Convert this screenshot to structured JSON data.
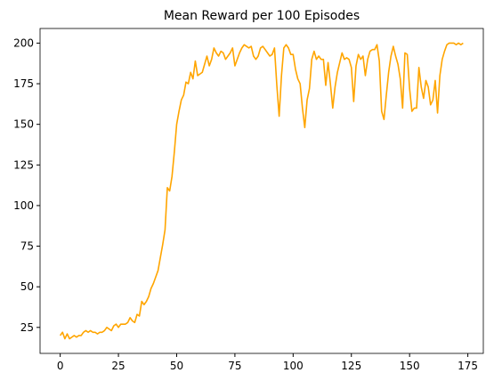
{
  "chart_data": {
    "type": "line",
    "title": "Mean Reward per 100 Episodes",
    "color": "#ffa500",
    "x": [
      0,
      1,
      2,
      3,
      4,
      5,
      6,
      7,
      8,
      9,
      10,
      11,
      12,
      13,
      14,
      15,
      16,
      17,
      18,
      19,
      20,
      21,
      22,
      23,
      24,
      25,
      26,
      27,
      28,
      29,
      30,
      31,
      32,
      33,
      34,
      35,
      36,
      37,
      38,
      39,
      40,
      41,
      42,
      43,
      44,
      45,
      46,
      47,
      48,
      49,
      50,
      51,
      52,
      53,
      54,
      55,
      56,
      57,
      58,
      59,
      60,
      61,
      62,
      63,
      64,
      65,
      66,
      67,
      68,
      69,
      70,
      71,
      72,
      73,
      74,
      75,
      76,
      77,
      78,
      79,
      80,
      81,
      82,
      83,
      84,
      85,
      86,
      87,
      88,
      89,
      90,
      91,
      92,
      93,
      94,
      95,
      96,
      97,
      98,
      99,
      100,
      101,
      102,
      103,
      104,
      105,
      106,
      107,
      108,
      109,
      110,
      111,
      112,
      113,
      114,
      115,
      116,
      117,
      118,
      119,
      120,
      121,
      122,
      123,
      124,
      125,
      126,
      127,
      128,
      129,
      130,
      131,
      132,
      133,
      134,
      135,
      136,
      137,
      138,
      139,
      140,
      141,
      142,
      143,
      144,
      145,
      146,
      147,
      148,
      149,
      150,
      151,
      152,
      153,
      154,
      155,
      156,
      157,
      158,
      159,
      160,
      161,
      162,
      163,
      164,
      165,
      166,
      167,
      168,
      169,
      170,
      171,
      172,
      173
    ],
    "values": [
      20,
      22,
      18,
      21,
      18,
      19,
      20,
      19,
      20,
      20,
      22,
      23,
      22,
      23,
      22,
      22,
      21,
      22,
      22,
      23,
      25,
      24,
      23,
      26,
      27,
      25,
      27,
      27,
      27,
      28,
      31,
      29,
      28,
      33,
      32,
      41,
      39,
      41,
      44,
      49,
      52,
      56,
      60,
      68,
      76,
      85,
      111,
      109,
      118,
      133,
      150,
      158,
      165,
      168,
      176,
      175,
      182,
      178,
      189,
      180,
      181,
      182,
      187,
      192,
      186,
      190,
      197,
      194,
      192,
      195,
      194,
      190,
      192,
      194,
      197,
      186,
      190,
      194,
      197,
      199,
      198,
      197,
      198,
      192,
      190,
      192,
      197,
      198,
      196,
      194,
      192,
      193,
      197,
      174,
      155,
      180,
      197,
      199,
      197,
      193,
      193,
      184,
      178,
      175,
      160,
      148,
      165,
      172,
      190,
      195,
      190,
      192,
      190,
      190,
      174,
      188,
      175,
      160,
      173,
      182,
      188,
      194,
      190,
      191,
      190,
      185,
      164,
      186,
      193,
      190,
      192,
      180,
      190,
      195,
      196,
      196,
      199,
      189,
      158,
      153,
      168,
      182,
      192,
      198,
      192,
      187,
      178,
      160,
      194,
      193,
      172,
      158,
      160,
      160,
      185,
      173,
      166,
      177,
      173,
      162,
      165,
      177,
      157,
      180,
      190,
      195,
      199,
      200,
      200,
      200,
      199,
      200,
      199,
      200
    ],
    "xlim": [
      -8.65,
      181.65
    ],
    "ylim": [
      9,
      209
    ],
    "xticks": [
      0,
      25,
      50,
      75,
      100,
      125,
      150,
      175
    ],
    "yticks": [
      25,
      50,
      75,
      100,
      125,
      150,
      175,
      200
    ]
  }
}
